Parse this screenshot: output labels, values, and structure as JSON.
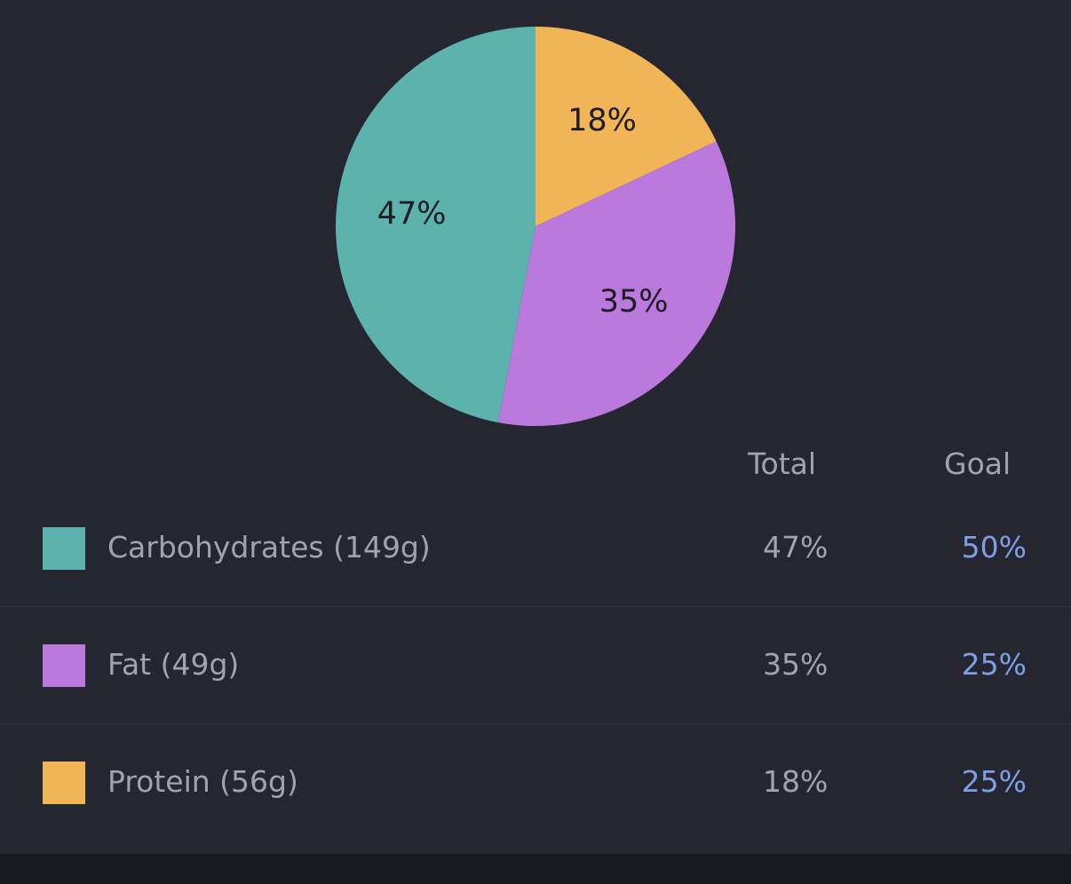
{
  "chart_data": {
    "type": "pie",
    "slices": [
      {
        "label": "Protein",
        "value": 18,
        "label_text": "18%",
        "color": "#f1b456"
      },
      {
        "label": "Fat",
        "value": 35,
        "label_text": "35%",
        "color": "#bb79de"
      },
      {
        "label": "Carbohydrates",
        "value": 47,
        "label_text": "47%",
        "color": "#5cb3ae"
      }
    ],
    "start_angle_deg": 0,
    "direction": "clockwise"
  },
  "table": {
    "headers": {
      "total": "Total",
      "goal": "Goal"
    },
    "rows": [
      {
        "name": "Carbohydrates (149g)",
        "total": "47%",
        "goal": "50%",
        "color": "#5cb3ae"
      },
      {
        "name": "Fat (49g)",
        "total": "35%",
        "goal": "25%",
        "color": "#bb79de"
      },
      {
        "name": "Protein (56g)",
        "total": "18%",
        "goal": "25%",
        "color": "#f1b456"
      }
    ]
  }
}
